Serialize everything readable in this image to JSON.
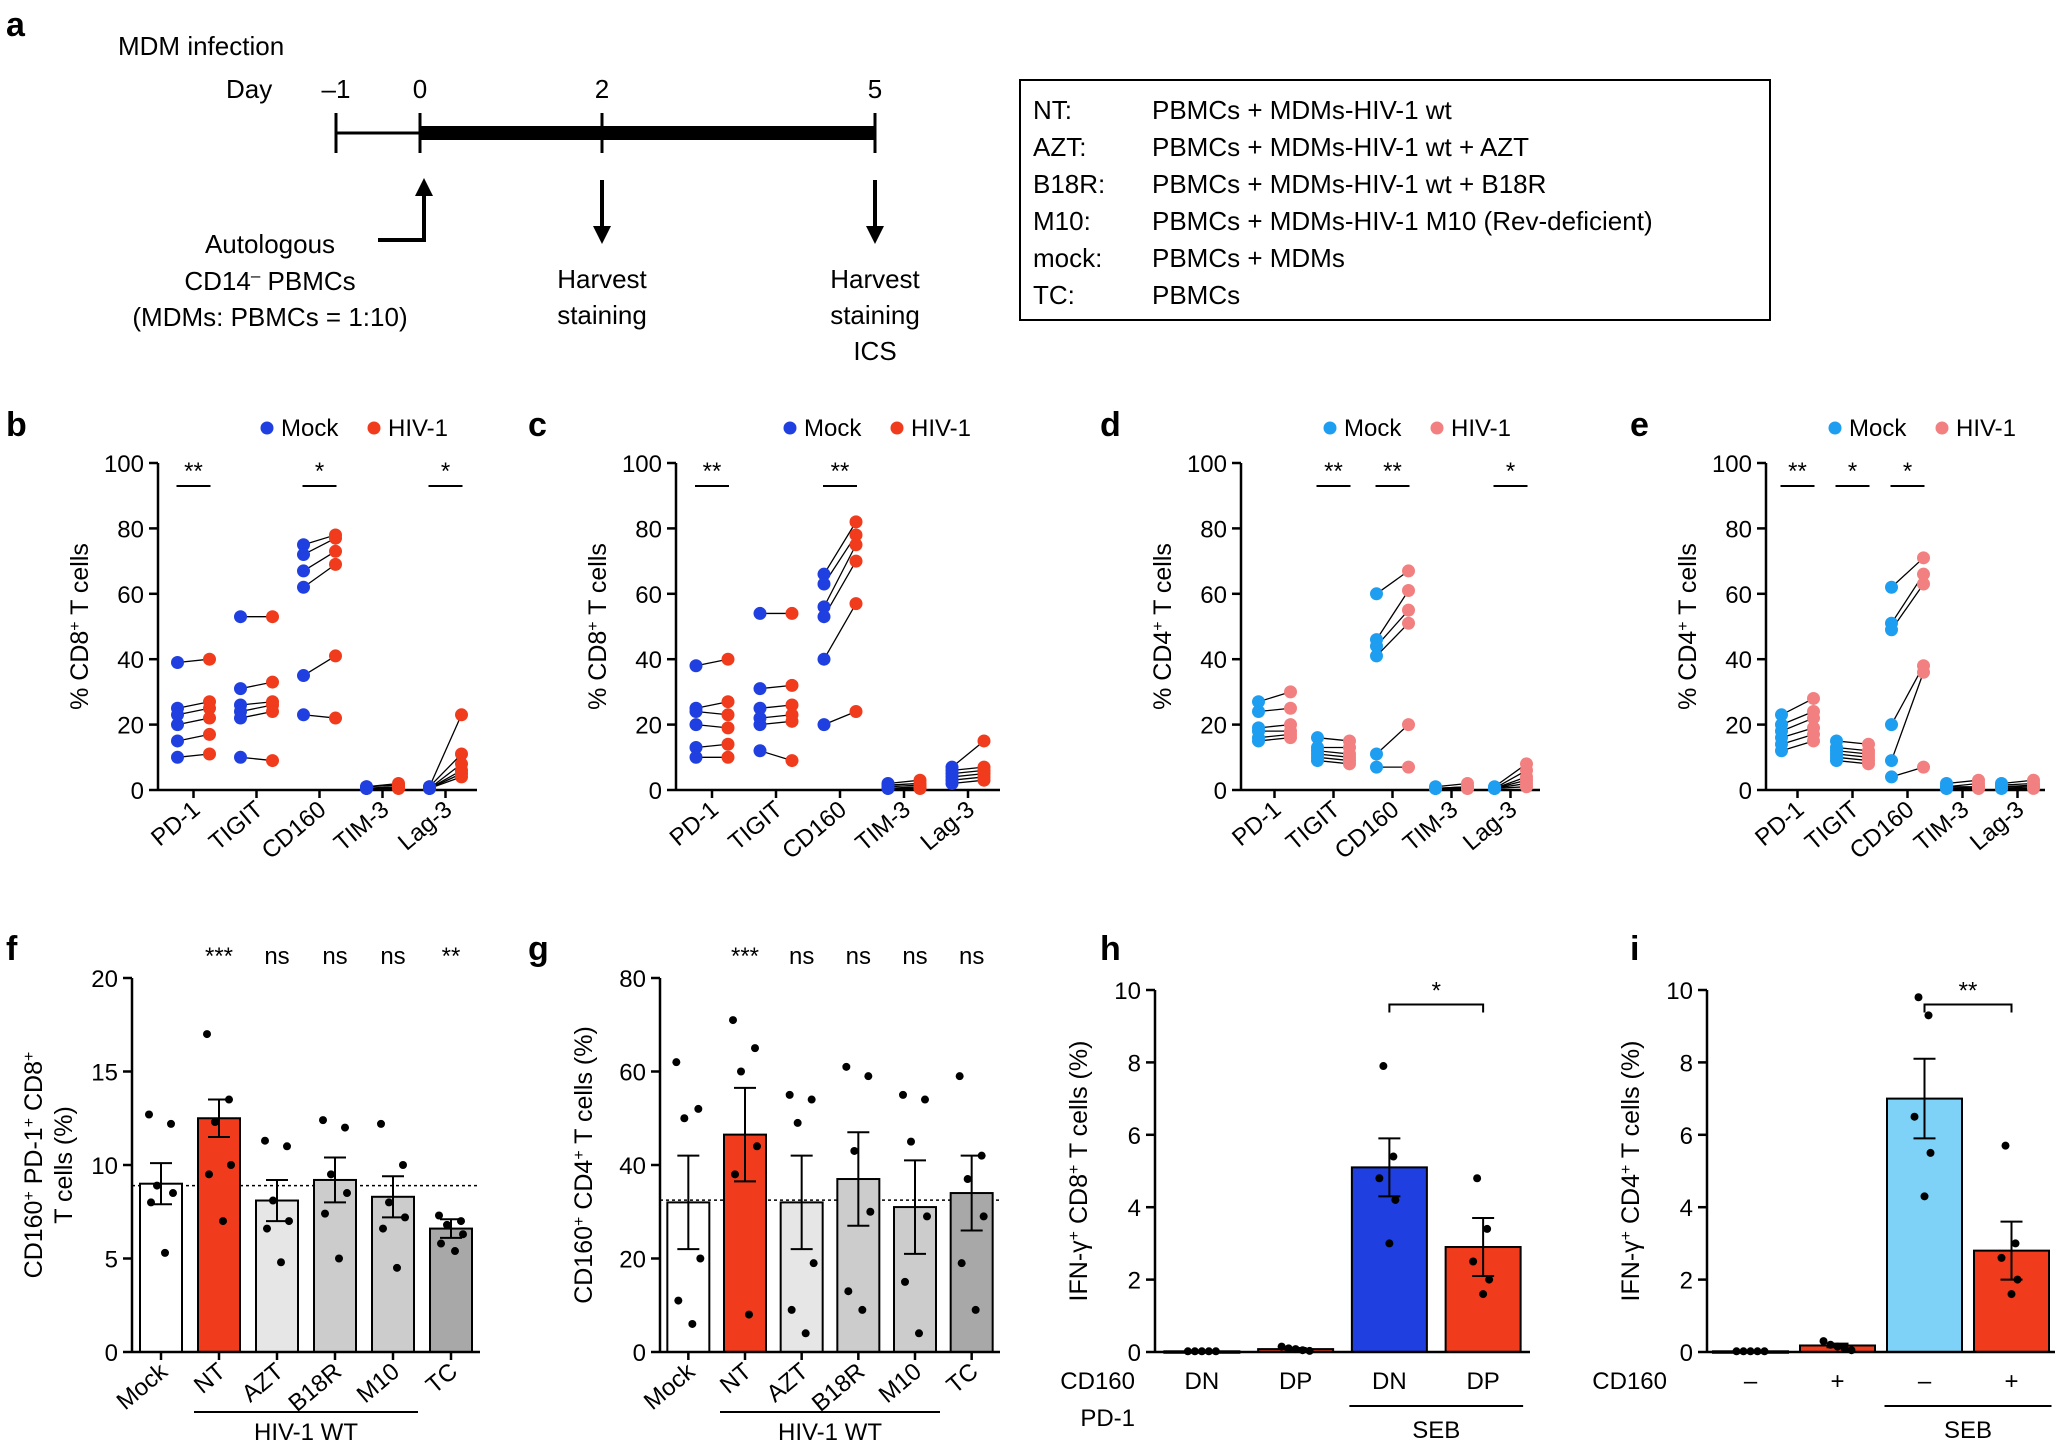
{
  "panel_a": {
    "label": "a",
    "title": "MDM infection",
    "day_label": "Day",
    "days": [
      "–1",
      "0",
      "2",
      "5"
    ],
    "autologous": [
      "Autologous",
      "CD14",
      "–",
      " PBMCs",
      "(MDMs: PBMCs = 1:10)"
    ],
    "harvest1": [
      "Harvest",
      "staining"
    ],
    "harvest2": [
      "Harvest",
      "staining",
      "ICS"
    ],
    "conditions": [
      {
        "key": "NT:",
        "desc": "PBMCs + MDMs-HIV-1 wt"
      },
      {
        "key": "AZT:",
        "desc": "PBMCs + MDMs-HIV-1 wt + AZT"
      },
      {
        "key": "B18R:",
        "desc": "PBMCs + MDMs-HIV-1 wt + B18R"
      },
      {
        "key": "M10:",
        "desc": "PBMCs + MDMs-HIV-1 M10 (Rev-deficient)"
      },
      {
        "key": "mock:",
        "desc": "PBMCs + MDMs"
      },
      {
        "key": "TC:",
        "desc": "PBMCs"
      }
    ]
  },
  "colors": {
    "mock_dark": "#1f3fe0",
    "hiv_dark": "#f03b1c",
    "mock_light": "#1e9ef0",
    "hiv_light": "#f28080",
    "bar_light_gray": "#e6e6e6",
    "bar_mid_gray": "#cccccc",
    "bar_dark_gray": "#a8a8a8",
    "bar_light_blue": "#7ed2f7"
  },
  "chart_data": [
    {
      "id": "b",
      "type": "scatter",
      "ylabel_parts": [
        "% CD8",
        "+",
        " T cells"
      ],
      "ylim": [
        0,
        100
      ],
      "yticks": [
        "0",
        "20",
        "40",
        "60",
        "80",
        "100"
      ],
      "categories": [
        "PD-1",
        "TIGIT",
        "CD160",
        "TIM-3",
        "Lag-3"
      ],
      "legend": [
        "Mock",
        "HIV-1"
      ],
      "significance": [
        "**",
        "",
        "*",
        "",
        "*"
      ],
      "series": [
        {
          "name": "Mock",
          "values": [
            [
              39,
              25,
              23,
              20,
              15,
              10
            ],
            [
              53,
              31,
              26,
              24,
              22,
              10
            ],
            [
              75,
              72,
              67,
              62,
              35,
              23
            ],
            [
              1,
              1,
              0.5,
              0.5,
              0.5,
              0.5
            ],
            [
              1,
              1,
              0.5,
              0.5,
              0.5,
              0.5
            ]
          ]
        },
        {
          "name": "HIV-1",
          "values": [
            [
              40,
              27,
              25,
              22,
              17,
              11
            ],
            [
              53,
              33,
              27,
              26,
              24,
              9
            ],
            [
              78,
              77,
              73,
              69,
              41,
              22
            ],
            [
              2,
              1.5,
              1,
              1,
              0.5,
              0.5
            ],
            [
              23,
              11,
              8,
              6,
              5,
              4
            ]
          ]
        }
      ]
    },
    {
      "id": "c",
      "type": "scatter",
      "ylabel_parts": [
        "% CD8",
        "+",
        " T cells"
      ],
      "ylim": [
        0,
        100
      ],
      "yticks": [
        "0",
        "20",
        "40",
        "60",
        "80",
        "100"
      ],
      "categories": [
        "PD-1",
        "TIGIT",
        "CD160",
        "TIM-3",
        "Lag-3"
      ],
      "legend": [
        "Mock",
        "HIV-1"
      ],
      "significance": [
        "**",
        "",
        "**",
        "",
        ""
      ],
      "series": [
        {
          "name": "Mock",
          "values": [
            [
              38,
              25,
              24,
              20,
              13,
              10
            ],
            [
              54,
              31,
              25,
              22,
              20,
              12
            ],
            [
              66,
              63,
              56,
              53,
              40,
              20
            ],
            [
              2,
              1.5,
              1,
              0.5,
              0.5,
              0.5
            ],
            [
              7,
              6,
              5,
              4,
              3,
              2
            ]
          ]
        },
        {
          "name": "HIV-1",
          "values": [
            [
              40,
              27,
              23,
              19,
              14,
              10
            ],
            [
              54,
              32,
              26,
              23,
              21,
              9
            ],
            [
              82,
              78,
              75,
              70,
              57,
              24
            ],
            [
              3,
              2,
              1.5,
              1,
              0.5,
              0.5
            ],
            [
              15,
              7,
              6,
              5,
              4,
              3
            ]
          ]
        }
      ]
    },
    {
      "id": "d",
      "type": "scatter",
      "ylabel_parts": [
        "% CD4",
        "+",
        " T cells"
      ],
      "ylim": [
        0,
        100
      ],
      "yticks": [
        "0",
        "20",
        "40",
        "60",
        "80",
        "100"
      ],
      "categories": [
        "PD-1",
        "TIGIT",
        "CD160",
        "TIM-3",
        "Lag-3"
      ],
      "legend": [
        "Mock",
        "HIV-1"
      ],
      "significance": [
        "",
        "**",
        "**",
        "",
        "*"
      ],
      "series": [
        {
          "name": "Mock",
          "values": [
            [
              27,
              24,
              19,
              18,
              16,
              15
            ],
            [
              16,
              13,
              12,
              11,
              10,
              9
            ],
            [
              60,
              46,
              44,
              41,
              11,
              7
            ],
            [
              1,
              0.5,
              0.5,
              0.5,
              0.5,
              0.5
            ],
            [
              1,
              0.5,
              0.5,
              0.5,
              0.5,
              0.5
            ]
          ]
        },
        {
          "name": "HIV-1",
          "values": [
            [
              30,
              25,
              20,
              18,
              17,
              16
            ],
            [
              15,
              13,
              11,
              10,
              9,
              8
            ],
            [
              67,
              61,
              55,
              51,
              20,
              7
            ],
            [
              2,
              1,
              1,
              0.5,
              0.5,
              0.5
            ],
            [
              8,
              6,
              4,
              3,
              2,
              1
            ]
          ]
        }
      ]
    },
    {
      "id": "e",
      "type": "scatter",
      "ylabel_parts": [
        "% CD4",
        "+",
        " T cells"
      ],
      "ylim": [
        0,
        100
      ],
      "yticks": [
        "0",
        "20",
        "40",
        "60",
        "80",
        "100"
      ],
      "categories": [
        "PD-1",
        "TIGIT",
        "CD160",
        "TIM-3",
        "Lag-3"
      ],
      "legend": [
        "Mock",
        "HIV-1"
      ],
      "significance": [
        "**",
        "*",
        "*",
        "",
        ""
      ],
      "series": [
        {
          "name": "Mock",
          "values": [
            [
              23,
              20,
              18,
              16,
              14,
              12
            ],
            [
              15,
              13,
              12,
              11,
              10,
              9
            ],
            [
              62,
              51,
              49,
              20,
              9,
              4
            ],
            [
              2,
              1,
              1,
              0.5,
              0.5,
              0.5
            ],
            [
              2,
              1.5,
              1,
              1,
              0.5,
              0.5
            ]
          ]
        },
        {
          "name": "HIV-1",
          "values": [
            [
              28,
              24,
              22,
              19,
              17,
              15
            ],
            [
              14,
              12,
              11,
              10,
              9,
              8
            ],
            [
              71,
              66,
              63,
              38,
              36,
              7
            ],
            [
              3,
              2,
              1,
              1,
              0.5,
              0.5
            ],
            [
              3,
              2,
              1.5,
              1,
              1,
              0.5
            ]
          ]
        }
      ]
    },
    {
      "id": "f",
      "type": "bar",
      "ylabel_lines": [
        [
          "CD160",
          "+",
          " PD-1",
          "+",
          " CD8",
          "+"
        ],
        [
          "T cells (%)"
        ]
      ],
      "ylim": [
        0,
        20
      ],
      "yticks": [
        "0",
        "5",
        "10",
        "15",
        "20"
      ],
      "categories": [
        "Mock",
        "NT",
        "AZT",
        "B18R",
        "M10",
        "TC"
      ],
      "values": [
        9.0,
        12.5,
        8.1,
        9.2,
        8.3,
        6.6
      ],
      "errors": [
        1.1,
        1.0,
        1.1,
        1.2,
        1.1,
        0.5
      ],
      "points": [
        [
          12.7,
          12.2,
          8.9,
          8.5,
          8.0,
          5.3
        ],
        [
          17.0,
          13.5,
          12.3,
          10.0,
          9.5,
          7.0
        ],
        [
          11.3,
          11.0,
          8.1,
          7.0,
          6.6,
          4.8
        ],
        [
          12.4,
          12.0,
          9.5,
          8.5,
          7.4,
          5.0
        ],
        [
          12.2,
          10.0,
          8.0,
          7.2,
          6.6,
          4.5
        ],
        [
          7.3,
          7.0,
          6.8,
          6.3,
          5.8,
          5.4
        ]
      ],
      "bar_colors": [
        "#ffffff",
        "#f03b1c",
        "#e6e6e6",
        "#cccccc",
        "#cccccc",
        "#a8a8a8"
      ],
      "reference_line": 8.9,
      "significance": [
        "",
        "***",
        "ns",
        "ns",
        "ns",
        "**"
      ],
      "group_label": "HIV-1 WT"
    },
    {
      "id": "g",
      "type": "bar",
      "ylabel_lines": [
        [
          "CD160",
          "+",
          " CD4",
          "+",
          " T cells (%)"
        ]
      ],
      "ylim": [
        0,
        80
      ],
      "yticks": [
        "0",
        "20",
        "40",
        "60",
        "80"
      ],
      "categories": [
        "Mock",
        "NT",
        "AZT",
        "B18R",
        "M10",
        "TC"
      ],
      "values": [
        32,
        46.5,
        32,
        37,
        31,
        34
      ],
      "errors": [
        10,
        10,
        10,
        10,
        10,
        8
      ],
      "points": [
        [
          62,
          52,
          50,
          20,
          11,
          6
        ],
        [
          71,
          65,
          60,
          44,
          38,
          8
        ],
        [
          55,
          54,
          49,
          19,
          9,
          4
        ],
        [
          61,
          59,
          43,
          30,
          13,
          9
        ],
        [
          55,
          54,
          45,
          29,
          15,
          4
        ],
        [
          59,
          42,
          37,
          29,
          19,
          9
        ]
      ],
      "bar_colors": [
        "#ffffff",
        "#f03b1c",
        "#e6e6e6",
        "#cccccc",
        "#cccccc",
        "#a8a8a8"
      ],
      "reference_line": 32.5,
      "significance": [
        "",
        "***",
        "ns",
        "ns",
        "ns",
        "ns"
      ],
      "group_label": "HIV-1 WT"
    },
    {
      "id": "h",
      "type": "bar",
      "ylabel_lines": [
        [
          "IFN-γ",
          "+",
          " CD8",
          "+",
          " T cells (%)"
        ]
      ],
      "ylim": [
        0,
        10
      ],
      "yticks": [
        "0",
        "2",
        "4",
        "6",
        "8",
        "10"
      ],
      "categories": [
        "DN",
        "DP",
        "DN",
        "DP"
      ],
      "row_labels": [
        "CD160",
        "PD-1"
      ],
      "values": [
        0.02,
        0.08,
        5.1,
        2.9
      ],
      "errors": [
        0,
        0.03,
        0.8,
        0.8
      ],
      "points": [
        [
          0.02,
          0.02,
          0.02,
          0.02,
          0.02
        ],
        [
          0.15,
          0.1,
          0.08,
          0.05,
          0.03
        ],
        [
          7.9,
          5.4,
          4.8,
          4.2,
          3.0
        ],
        [
          4.8,
          3.4,
          2.5,
          2.0,
          1.6
        ]
      ],
      "bar_colors": [
        "#ffffff",
        "#f03b1c",
        "#1f3fe0",
        "#f03b1c"
      ],
      "significance_bracket": {
        "label": "*",
        "from": 2,
        "to": 3,
        "y": 9.6
      },
      "group_label": "SEB"
    },
    {
      "id": "i",
      "type": "bar",
      "ylabel_lines": [
        [
          "IFN-γ",
          "+",
          " CD4",
          "+",
          " T cells (%)"
        ]
      ],
      "ylim": [
        0,
        10
      ],
      "yticks": [
        "0",
        "2",
        "4",
        "6",
        "8",
        "10"
      ],
      "categories": [
        "–",
        "+",
        "–",
        "+"
      ],
      "row_labels": [
        "CD160"
      ],
      "values": [
        0.02,
        0.18,
        7.0,
        2.8
      ],
      "errors": [
        0,
        0.05,
        1.1,
        0.8
      ],
      "points": [
        [
          0.02,
          0.02,
          0.02,
          0.02,
          0.02
        ],
        [
          0.3,
          0.2,
          0.15,
          0.1,
          0.05
        ],
        [
          9.8,
          9.3,
          6.5,
          5.5,
          4.3
        ],
        [
          5.7,
          3.0,
          2.6,
          2.0,
          1.6
        ]
      ],
      "bar_colors": [
        "#ffffff",
        "#f03b1c",
        "#7ed2f7",
        "#f03b1c"
      ],
      "significance_bracket": {
        "label": "**",
        "from": 2,
        "to": 3,
        "y": 9.6
      },
      "group_label": "SEB"
    }
  ]
}
